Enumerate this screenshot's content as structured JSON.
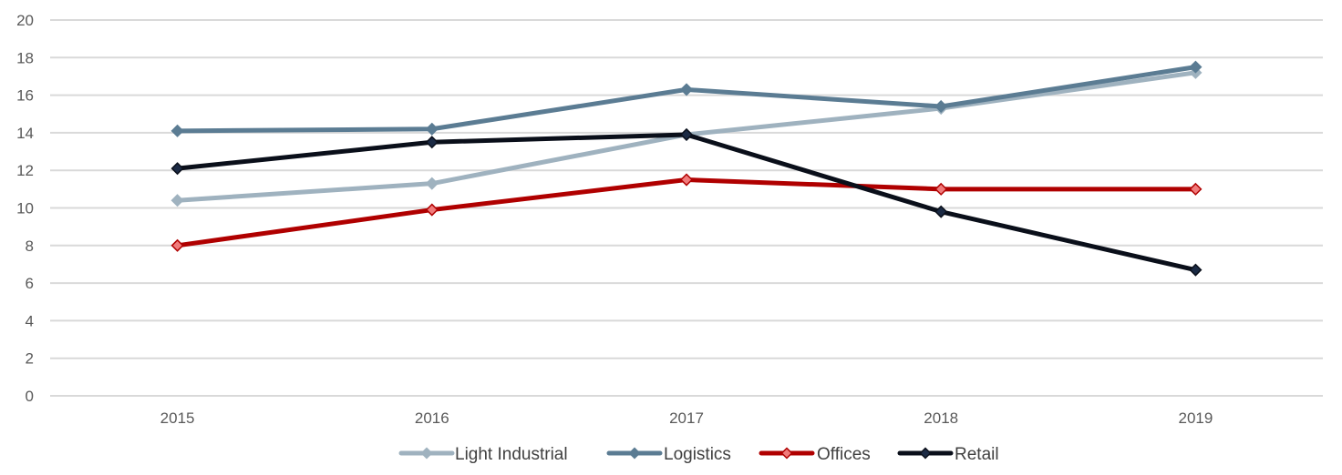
{
  "chart_data": {
    "type": "line",
    "title": "",
    "xlabel": "",
    "ylabel": "",
    "categories": [
      "2015",
      "2016",
      "2017",
      "2018",
      "2019"
    ],
    "ylim": [
      0,
      20
    ],
    "yticks": [
      "0",
      "2",
      "4",
      "6",
      "8",
      "10",
      "12",
      "14",
      "16",
      "18",
      "20"
    ],
    "grid": "horizontal",
    "legend_position": "bottom",
    "marker": "diamond",
    "series": [
      {
        "name": "Light Industrial",
        "color": "#9fb2bf",
        "values": [
          10.4,
          11.3,
          13.9,
          15.3,
          17.2
        ]
      },
      {
        "name": "Logistics",
        "color": "#5b7c93",
        "values": [
          14.1,
          14.2,
          16.3,
          15.4,
          17.5
        ]
      },
      {
        "name": "Offices",
        "color": "#b00000",
        "marker_fill": "#f07b7b",
        "values": [
          8.0,
          9.9,
          11.5,
          11.0,
          11.0
        ]
      },
      {
        "name": "Retail",
        "color": "#0a0f1a",
        "marker_fill": "#1b2a44",
        "values": [
          12.1,
          13.5,
          13.9,
          9.8,
          6.7
        ]
      }
    ]
  }
}
